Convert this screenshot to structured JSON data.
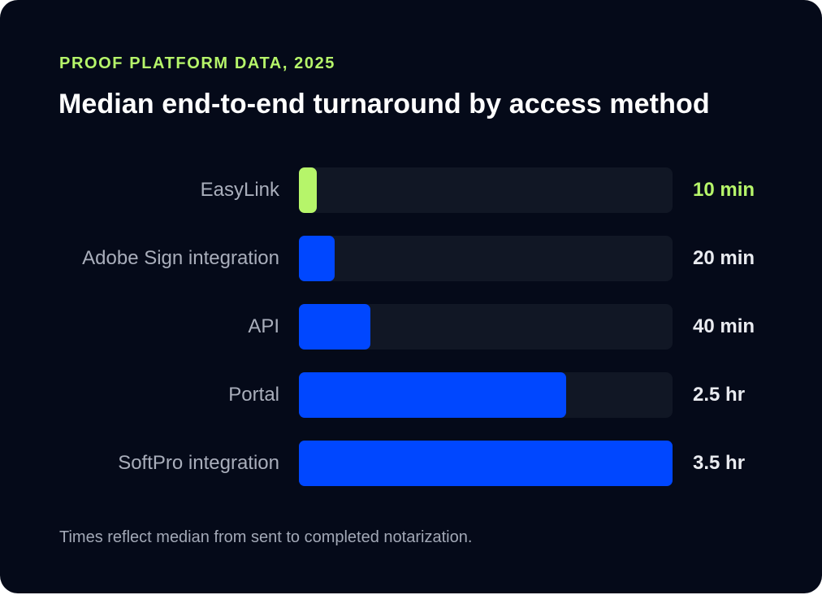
{
  "eyebrow": "PROOF PLATFORM DATA, 2025",
  "title": "Median end-to-end turnaround by access method",
  "footnote": "Times reflect median from sent to completed notarization.",
  "colors": {
    "background": "#050a19",
    "track": "#111725",
    "bar": "#0047ff",
    "highlight": "#b6f56a",
    "label": "#a9aebb",
    "value": "#e9ebf0"
  },
  "chart_data": {
    "type": "bar",
    "orientation": "horizontal",
    "unit": "minutes",
    "xlim": [
      0,
      210
    ],
    "categories": [
      "EasyLink",
      "Adobe Sign integration",
      "API",
      "Portal",
      "SoftPro integration"
    ],
    "values": [
      10,
      20,
      40,
      150,
      210
    ],
    "value_labels": [
      "10 min",
      "20 min",
      "40 min",
      "2.5 hr",
      "3.5 hr"
    ],
    "highlight_index": 0,
    "grid": false,
    "legend": false
  }
}
